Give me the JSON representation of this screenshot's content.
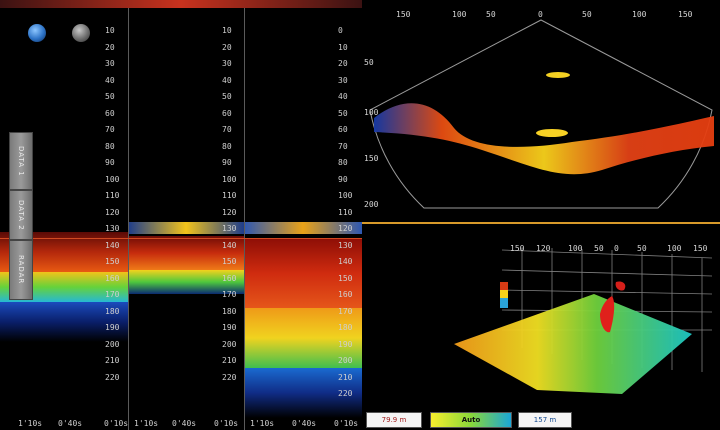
{
  "left_tabs": [
    "DATA 1",
    "DATA 2",
    "RADAR"
  ],
  "col1": {
    "ticks": [
      "10",
      "20",
      "30",
      "40",
      "50",
      "60",
      "70",
      "80",
      "90",
      "100",
      "110",
      "120",
      "130",
      "140",
      "150",
      "160",
      "170",
      "180",
      "190",
      "200",
      "210",
      "220"
    ],
    "time_labels": [
      "1'10s",
      "0'40s",
      "0'10s"
    ]
  },
  "col2": {
    "ticks": [
      "10",
      "20",
      "30",
      "40",
      "50",
      "60",
      "70",
      "80",
      "90",
      "100",
      "110",
      "120",
      "130",
      "140",
      "150",
      "160",
      "170",
      "180",
      "190",
      "200",
      "210",
      "220"
    ],
    "time_labels": [
      "1'10s",
      "0'40s",
      "0'10s"
    ]
  },
  "col3": {
    "ticks": [
      "0",
      "10",
      "20",
      "30",
      "40",
      "50",
      "60",
      "70",
      "80",
      "90",
      "100",
      "110",
      "120",
      "130",
      "140",
      "150",
      "160",
      "170",
      "180",
      "190",
      "200",
      "210",
      "220"
    ],
    "time_labels": [
      "1'10s",
      "0'40s",
      "0'10s"
    ]
  },
  "sonar_top": {
    "x_labels": [
      "150",
      "100",
      "50",
      "0",
      "50",
      "100",
      "150"
    ],
    "y_labels": [
      "50",
      "100",
      "150",
      "200"
    ]
  },
  "sonar_3d": {
    "labels": [
      "150",
      "120",
      "100",
      "50",
      "0",
      "50",
      "100",
      "150"
    ],
    "status_left": "79.9 m",
    "status_mid": "Auto",
    "status_right": "157 m"
  },
  "colors": {
    "accent_red": "#c8321e",
    "separator_orange": "#d89a2a"
  }
}
